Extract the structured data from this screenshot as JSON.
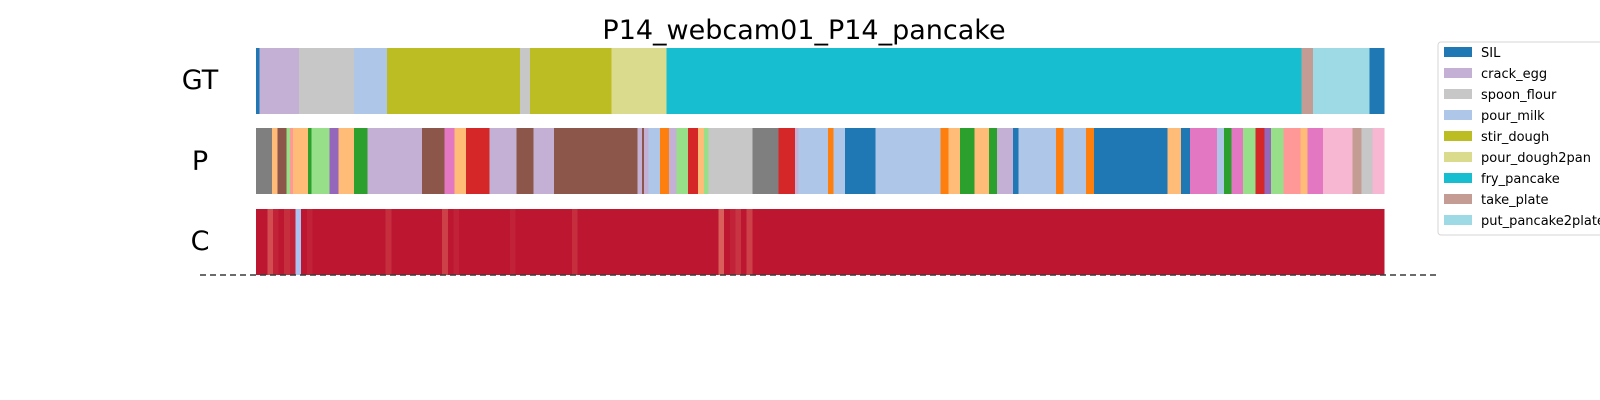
{
  "chart_data": {
    "type": "segmentation-timeline",
    "title": "P14_webcam01_P14_pancake",
    "x_range": [
      0,
      1000
    ],
    "rows": [
      {
        "label": "GT",
        "segments": [
          {
            "start": 0,
            "end": 3,
            "label": "SIL"
          },
          {
            "start": 3,
            "end": 38,
            "label": "crack_egg"
          },
          {
            "start": 38,
            "end": 87,
            "label": "spoon_flour"
          },
          {
            "start": 87,
            "end": 116,
            "label": "pour_milk"
          },
          {
            "start": 116,
            "end": 234,
            "label": "stir_dough"
          },
          {
            "start": 234,
            "end": 243,
            "label": "spoon_flour"
          },
          {
            "start": 243,
            "end": 315,
            "label": "stir_dough"
          },
          {
            "start": 315,
            "end": 364,
            "label": "pour_dough2pan"
          },
          {
            "start": 364,
            "end": 927,
            "label": "fry_pancake"
          },
          {
            "start": 927,
            "end": 937,
            "label": "take_plate"
          },
          {
            "start": 937,
            "end": 987,
            "label": "put_pancake2plate"
          },
          {
            "start": 987,
            "end": 1000,
            "label": "SIL"
          }
        ]
      },
      {
        "label": "P",
        "segments": [
          {
            "start": 0,
            "end": 14,
            "color": "#7f7f7f"
          },
          {
            "start": 14,
            "end": 19,
            "color": "#ffbb78"
          },
          {
            "start": 19,
            "end": 27,
            "color": "#8c564b"
          },
          {
            "start": 27,
            "end": 30,
            "color": "#98df8a"
          },
          {
            "start": 30,
            "end": 33,
            "color": "#ff9896"
          },
          {
            "start": 33,
            "end": 46,
            "color": "#ffbb78"
          },
          {
            "start": 46,
            "end": 49,
            "color": "#2ca02c"
          },
          {
            "start": 49,
            "end": 65,
            "color": "#98df8a"
          },
          {
            "start": 65,
            "end": 73,
            "color": "#9467bd"
          },
          {
            "start": 73,
            "end": 87,
            "color": "#ffbb78"
          },
          {
            "start": 87,
            "end": 99,
            "color": "#2ca02c"
          },
          {
            "start": 99,
            "end": 147,
            "color": "#c5b0d5"
          },
          {
            "start": 147,
            "end": 167,
            "color": "#8c564b"
          },
          {
            "start": 167,
            "end": 176,
            "color": "#e377c2"
          },
          {
            "start": 176,
            "end": 186,
            "color": "#ffbb78"
          },
          {
            "start": 186,
            "end": 207,
            "color": "#d62728"
          },
          {
            "start": 207,
            "end": 231,
            "color": "#c5b0d5"
          },
          {
            "start": 231,
            "end": 246,
            "color": "#8c564b"
          },
          {
            "start": 246,
            "end": 264,
            "color": "#c5b0d5"
          },
          {
            "start": 264,
            "end": 338,
            "color": "#8c564b"
          },
          {
            "start": 338,
            "end": 342,
            "color": "#c5b0d5"
          },
          {
            "start": 342,
            "end": 344,
            "color": "#8c564b"
          },
          {
            "start": 344,
            "end": 348,
            "color": "#c5b0d5"
          },
          {
            "start": 348,
            "end": 358,
            "color": "#aec7e8"
          },
          {
            "start": 358,
            "end": 366,
            "color": "#ff7f0e"
          },
          {
            "start": 366,
            "end": 373,
            "color": "#c5b0d5"
          },
          {
            "start": 373,
            "end": 383,
            "color": "#98df8a"
          },
          {
            "start": 383,
            "end": 392,
            "color": "#d62728"
          },
          {
            "start": 392,
            "end": 397,
            "color": "#ffbb78"
          },
          {
            "start": 397,
            "end": 401,
            "color": "#98df8a"
          },
          {
            "start": 401,
            "end": 440,
            "color": "#c7c7c7"
          },
          {
            "start": 440,
            "end": 463,
            "color": "#7f7f7f"
          },
          {
            "start": 463,
            "end": 478,
            "color": "#d62728"
          },
          {
            "start": 478,
            "end": 481,
            "color": "#c5b0d5"
          },
          {
            "start": 481,
            "end": 507,
            "color": "#aec7e8"
          },
          {
            "start": 507,
            "end": 512,
            "color": "#ff7f0e"
          },
          {
            "start": 512,
            "end": 522,
            "color": "#aec7e8"
          },
          {
            "start": 522,
            "end": 549,
            "color": "#1f77b4"
          },
          {
            "start": 549,
            "end": 607,
            "color": "#aec7e8"
          },
          {
            "start": 607,
            "end": 614,
            "color": "#ff7f0e"
          },
          {
            "start": 614,
            "end": 624,
            "color": "#ffbb78"
          },
          {
            "start": 624,
            "end": 637,
            "color": "#2ca02c"
          },
          {
            "start": 637,
            "end": 650,
            "color": "#ffbb78"
          },
          {
            "start": 650,
            "end": 657,
            "color": "#2ca02c"
          },
          {
            "start": 657,
            "end": 671,
            "color": "#c5b0d5"
          },
          {
            "start": 671,
            "end": 676,
            "color": "#1f77b4"
          },
          {
            "start": 676,
            "end": 709,
            "color": "#aec7e8"
          },
          {
            "start": 709,
            "end": 716,
            "color": "#ff7f0e"
          },
          {
            "start": 716,
            "end": 736,
            "color": "#aec7e8"
          },
          {
            "start": 736,
            "end": 743,
            "color": "#ff7f0e"
          },
          {
            "start": 743,
            "end": 808,
            "color": "#1f77b4"
          },
          {
            "start": 808,
            "end": 820,
            "color": "#ffbb78"
          },
          {
            "start": 820,
            "end": 828,
            "color": "#1f77b4"
          },
          {
            "start": 828,
            "end": 852,
            "color": "#e377c2"
          },
          {
            "start": 852,
            "end": 858,
            "color": "#aec7e8"
          },
          {
            "start": 858,
            "end": 865,
            "color": "#2ca02c"
          },
          {
            "start": 865,
            "end": 875,
            "color": "#e377c2"
          },
          {
            "start": 875,
            "end": 886,
            "color": "#98df8a"
          },
          {
            "start": 886,
            "end": 894,
            "color": "#d62728"
          },
          {
            "start": 894,
            "end": 900,
            "color": "#9467bd"
          },
          {
            "start": 900,
            "end": 911,
            "color": "#98df8a"
          },
          {
            "start": 911,
            "end": 926,
            "color": "#ff9896"
          },
          {
            "start": 926,
            "end": 932,
            "color": "#ffbb78"
          },
          {
            "start": 932,
            "end": 946,
            "color": "#e377c2"
          },
          {
            "start": 946,
            "end": 972,
            "color": "#f7b6d2"
          },
          {
            "start": 972,
            "end": 980,
            "color": "#c49c94"
          },
          {
            "start": 980,
            "end": 990,
            "color": "#c7c7c7"
          },
          {
            "start": 990,
            "end": 1000,
            "color": "#f7b6d2"
          }
        ]
      },
      {
        "label": "C",
        "colormap": "coolwarm",
        "confidence": [
          0.97,
          0.97,
          0.88,
          0.95,
          0.97,
          0.93,
          0.95,
          0.35,
          0.97,
          0.95,
          0.97,
          0.97,
          0.97,
          0.97,
          0.97,
          0.97,
          0.97,
          0.97,
          0.97,
          0.97,
          0.97,
          0.97,
          0.97,
          0.93,
          0.97,
          0.97,
          0.97,
          0.97,
          0.97,
          0.97,
          0.97,
          0.97,
          0.97,
          0.9,
          0.97,
          0.95,
          0.97,
          0.97,
          0.97,
          0.97,
          0.97,
          0.97,
          0.97,
          0.97,
          0.97,
          0.95,
          0.97,
          0.97,
          0.97,
          0.97,
          0.97,
          0.97,
          0.97,
          0.97,
          0.97,
          0.97,
          0.93,
          0.97,
          0.97,
          0.97,
          0.97,
          0.97,
          0.97,
          0.97,
          0.97,
          0.97,
          0.97,
          0.97,
          0.97,
          0.97,
          0.97,
          0.97,
          0.97,
          0.97,
          0.97,
          0.97,
          0.97,
          0.97,
          0.97,
          0.97,
          0.97,
          0.97,
          0.85,
          0.97,
          0.95,
          0.92,
          0.97,
          0.9,
          0.97,
          0.97,
          0.97,
          0.97,
          0.97,
          0.97,
          0.97,
          0.97,
          0.97,
          0.97,
          0.97,
          0.97,
          0.97,
          0.97,
          0.97,
          0.97,
          0.97,
          0.97,
          0.97,
          0.97,
          0.97,
          0.97,
          0.97,
          0.97,
          0.97,
          0.97,
          0.97,
          0.97,
          0.97,
          0.97,
          0.97,
          0.97,
          0.97,
          0.97,
          0.97,
          0.97,
          0.97,
          0.97,
          0.97,
          0.97,
          0.97,
          0.97,
          0.97,
          0.97,
          0.97,
          0.97,
          0.97,
          0.97,
          0.97,
          0.97,
          0.97,
          0.97,
          0.97,
          0.97,
          0.97,
          0.97,
          0.97,
          0.97,
          0.97,
          0.97,
          0.97,
          0.97,
          0.97,
          0.97,
          0.97,
          0.97,
          0.97,
          0.97,
          0.97,
          0.97,
          0.97,
          0.97,
          0.97,
          0.97,
          0.97,
          0.97,
          0.97,
          0.97,
          0.97,
          0.97,
          0.97,
          0.97,
          0.97,
          0.97,
          0.97,
          0.97,
          0.97,
          0.97,
          0.97,
          0.97,
          0.97,
          0.97,
          0.97,
          0.97,
          0.97,
          0.97,
          0.97,
          0.97,
          0.97,
          0.97,
          0.97,
          0.97,
          0.97,
          0.97,
          0.97,
          0.97,
          0.97,
          0.97,
          0.97,
          0.97,
          0.97,
          0.97
        ]
      }
    ],
    "legend": {
      "position": "right",
      "entries": [
        {
          "label": "SIL",
          "color": "#1f77b4"
        },
        {
          "label": "crack_egg",
          "color": "#c5b0d5"
        },
        {
          "label": "spoon_flour",
          "color": "#c7c7c7"
        },
        {
          "label": "pour_milk",
          "color": "#aec7e8"
        },
        {
          "label": "stir_dough",
          "color": "#bcbd22"
        },
        {
          "label": "pour_dough2pan",
          "color": "#dbdb8d"
        },
        {
          "label": "fry_pancake",
          "color": "#17becf"
        },
        {
          "label": "take_plate",
          "color": "#c49c94"
        },
        {
          "label": "put_pancake2plate",
          "color": "#9edae5"
        }
      ]
    },
    "grid": false,
    "baseline": "dashed"
  }
}
